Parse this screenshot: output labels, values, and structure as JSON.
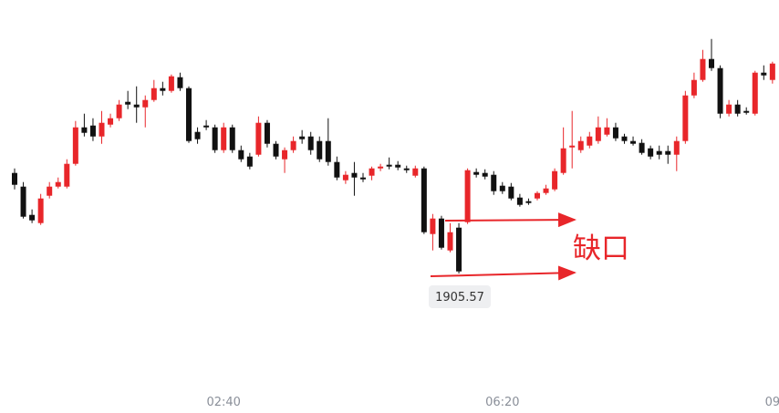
{
  "chart_data": {
    "type": "candlestick",
    "categories": [
      null,
      null,
      null,
      null,
      null,
      null,
      null,
      null,
      null,
      null,
      null,
      null,
      null,
      null,
      null,
      null,
      null,
      null,
      null,
      null,
      null,
      null,
      null,
      null,
      "02:40",
      null,
      null,
      null,
      null,
      null,
      null,
      null,
      null,
      null,
      null,
      null,
      null,
      null,
      null,
      null,
      null,
      null,
      null,
      null,
      null,
      null,
      null,
      null,
      null,
      null,
      null,
      null,
      null,
      null,
      null,
      null,
      "06:20",
      null,
      null,
      null,
      null,
      null,
      null,
      null,
      null,
      null,
      null,
      null,
      null,
      null,
      null,
      null,
      null,
      null,
      null,
      null,
      null,
      null,
      null,
      null,
      null,
      null,
      null,
      null,
      null,
      null,
      null,
      "09"
    ],
    "open": [
      1916.6,
      1915.1,
      1912.0,
      1911.1,
      1914.1,
      1915.1,
      1915.1,
      1917.6,
      1921.6,
      1921.8,
      1920.6,
      1921.9,
      1922.6,
      1924.4,
      1924.1,
      1923.8,
      1924.6,
      1925.9,
      1925.6,
      1927.1,
      1925.9,
      1921.1,
      1921.8,
      1921.6,
      1919.1,
      1921.6,
      1919.1,
      1918.4,
      1918.6,
      1922.1,
      1919.8,
      1918.1,
      1919.1,
      1920.6,
      1920.6,
      1920.1,
      1920.1,
      1917.8,
      1915.8,
      1916.6,
      1916.1,
      1916.3,
      1917.1,
      1917.5,
      1917.5,
      1917.1,
      1916.3,
      1917.1,
      1909.9,
      1911.6,
      1908.1,
      1910.6,
      1911.2,
      1916.7,
      1916.6,
      1916.4,
      1915.2,
      1915.1,
      1913.9,
      1913.5,
      1913.8,
      1914.4,
      1914.8,
      1916.6,
      1919.4,
      1919.1,
      1919.6,
      1920.1,
      1920.8,
      1921.6,
      1920.6,
      1920.1,
      1919.9,
      1919.3,
      1919.0,
      1919.0,
      1918.6,
      1920.1,
      1925.1,
      1926.8,
      1929.1,
      1928.1,
      1923.1,
      1924.1,
      1923.4,
      1923.1,
      1927.6,
      1926.8
    ],
    "high": [
      1917.1,
      1915.6,
      1912.6,
      1914.3,
      1915.6,
      1916.1,
      1918.1,
      1922.3,
      1923.1,
      1922.6,
      1923.4,
      1923.1,
      1924.6,
      1925.6,
      1926.1,
      1925.1,
      1926.8,
      1926.6,
      1927.4,
      1927.6,
      1926.1,
      1921.6,
      1922.4,
      1921.9,
      1922.1,
      1921.9,
      1919.6,
      1918.8,
      1922.8,
      1922.4,
      1920.1,
      1919.4,
      1920.6,
      1921.3,
      1921.1,
      1920.6,
      1922.6,
      1918.4,
      1916.8,
      1917.8,
      1916.6,
      1917.3,
      1917.6,
      1918.3,
      1917.9,
      1917.4,
      1917.4,
      1917.3,
      1912.1,
      1911.9,
      1911.1,
      1911.1,
      1917.1,
      1917.1,
      1917.0,
      1916.8,
      1915.6,
      1915.5,
      1914.3,
      1913.8,
      1914.6,
      1915.3,
      1917.1,
      1921.6,
      1923.4,
      1920.6,
      1921.1,
      1922.8,
      1922.6,
      1922.1,
      1920.9,
      1920.6,
      1920.3,
      1919.6,
      1919.6,
      1919.6,
      1920.6,
      1925.6,
      1927.6,
      1930.1,
      1931.3,
      1928.4,
      1924.6,
      1924.6,
      1923.8,
      1927.8,
      1928.4,
      1928.8
    ],
    "low": [
      1914.8,
      1911.6,
      1911.1,
      1910.9,
      1913.8,
      1914.9,
      1914.9,
      1917.4,
      1920.6,
      1920.1,
      1919.8,
      1921.6,
      1922.3,
      1923.6,
      1922.1,
      1921.6,
      1924.4,
      1925.1,
      1925.4,
      1925.6,
      1919.9,
      1919.8,
      1921.3,
      1918.8,
      1918.8,
      1918.8,
      1917.8,
      1917.0,
      1918.4,
      1919.4,
      1918.1,
      1916.6,
      1918.8,
      1919.8,
      1918.6,
      1917.8,
      1917.4,
      1915.8,
      1915.4,
      1914.1,
      1915.6,
      1915.8,
      1916.8,
      1917.0,
      1916.9,
      1916.6,
      1916.1,
      1909.9,
      1908.1,
      1908.2,
      1907.9,
      1905.57,
      1911.0,
      1916.1,
      1915.9,
      1914.2,
      1914.3,
      1913.6,
      1912.9,
      1913.1,
      1913.6,
      1914.2,
      1914.6,
      1916.4,
      1917.1,
      1918.8,
      1919.3,
      1919.8,
      1920.6,
      1920.1,
      1919.8,
      1919.6,
      1918.6,
      1918.1,
      1918.1,
      1917.6,
      1916.8,
      1919.8,
      1924.8,
      1926.6,
      1927.8,
      1922.6,
      1922.8,
      1922.8,
      1923.0,
      1922.9,
      1926.8,
      1926.4
    ],
    "close": [
      1915.3,
      1911.8,
      1911.4,
      1913.8,
      1915.1,
      1915.6,
      1917.6,
      1921.6,
      1921.0,
      1920.6,
      1922.1,
      1922.6,
      1924.1,
      1924.1,
      1923.8,
      1924.6,
      1925.9,
      1925.6,
      1927.2,
      1925.9,
      1920.1,
      1920.3,
      1921.6,
      1919.1,
      1921.6,
      1919.1,
      1918.1,
      1917.3,
      1922.1,
      1919.8,
      1918.4,
      1919.1,
      1920.1,
      1920.3,
      1919.1,
      1918.1,
      1917.8,
      1916.1,
      1916.4,
      1916.1,
      1915.9,
      1917.1,
      1917.3,
      1917.3,
      1917.2,
      1916.9,
      1917.1,
      1910.1,
      1911.6,
      1908.4,
      1910.1,
      1905.8,
      1916.9,
      1916.4,
      1916.2,
      1914.6,
      1914.6,
      1913.8,
      1913.1,
      1913.3,
      1914.4,
      1914.9,
      1916.8,
      1919.3,
      1919.6,
      1920.1,
      1920.6,
      1921.6,
      1921.6,
      1920.4,
      1920.1,
      1919.8,
      1918.8,
      1918.4,
      1918.6,
      1918.6,
      1920.1,
      1925.1,
      1926.8,
      1929.1,
      1928.1,
      1923.1,
      1924.1,
      1923.1,
      1923.2,
      1927.6,
      1927.3,
      1928.6
    ],
    "up_color": "#e8262a",
    "down_color": "#111111",
    "ylim": [
      1890.27,
      1935.57
    ],
    "annotation": "缺口"
  }
}
